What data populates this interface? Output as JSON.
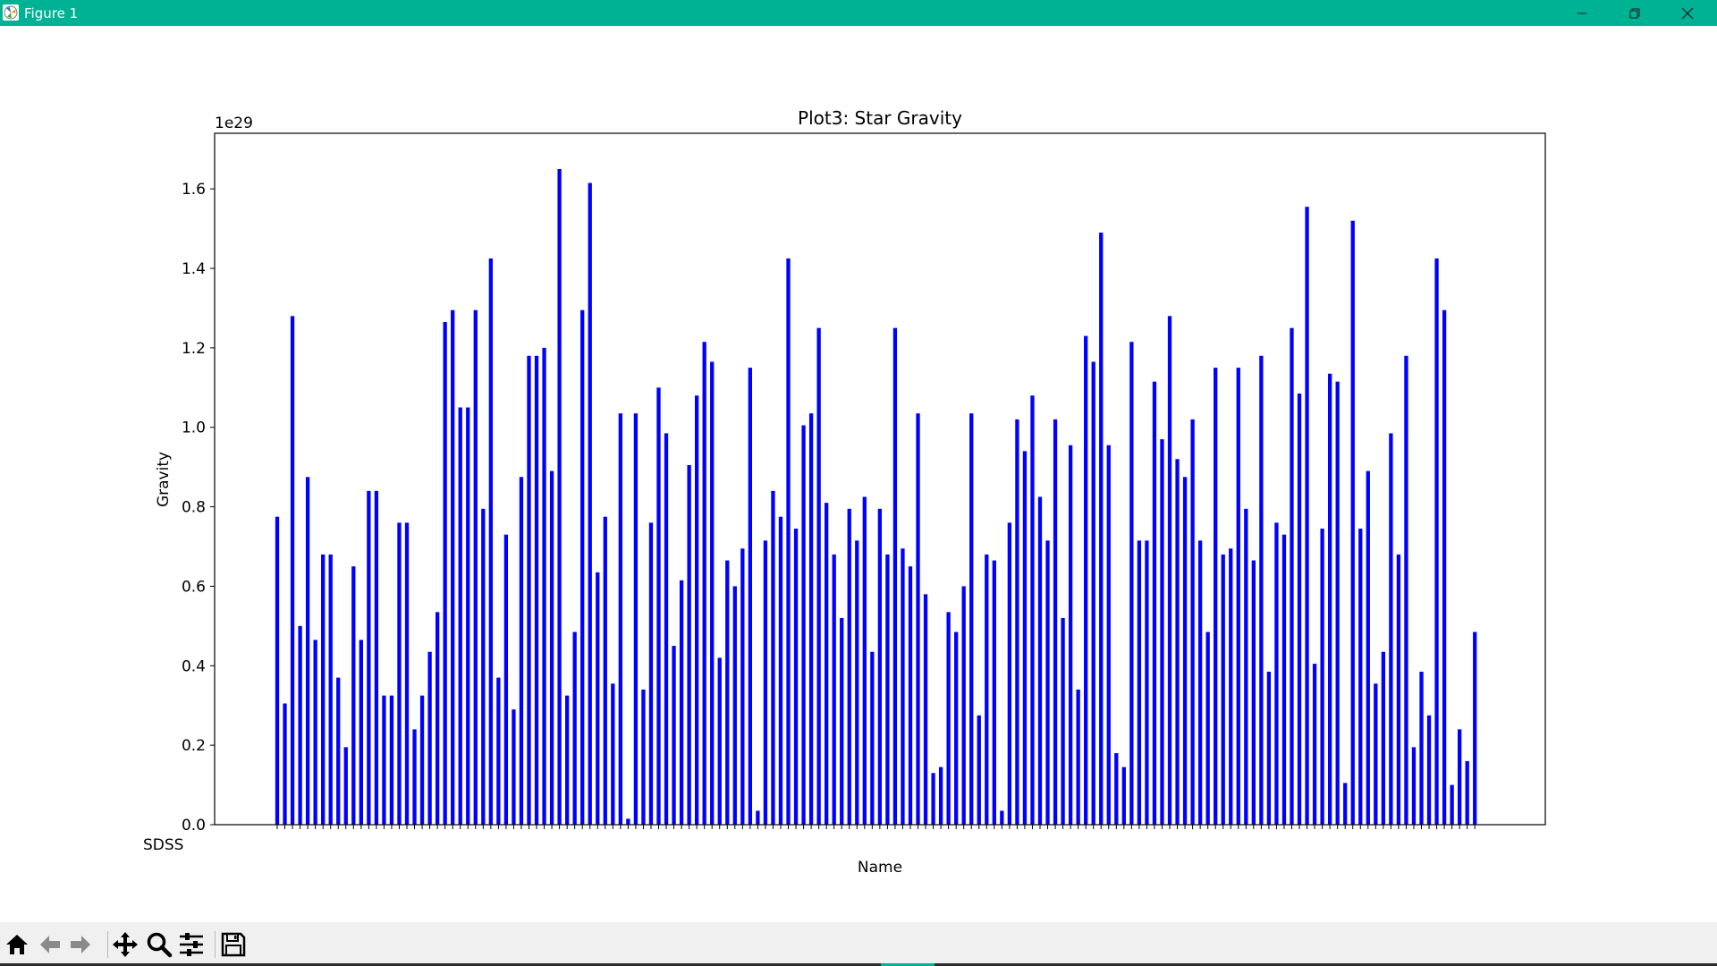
{
  "window": {
    "title": "Figure 1",
    "controls": [
      "minimize-icon",
      "restore-icon",
      "close-icon"
    ]
  },
  "toolbar": {
    "buttons": [
      {
        "name": "home-button",
        "icon": "home-icon"
      },
      {
        "name": "back-button",
        "icon": "arrow-left-icon"
      },
      {
        "name": "forward-button",
        "icon": "arrow-right-icon"
      },
      {
        "name": "pan-button",
        "icon": "move-icon"
      },
      {
        "name": "zoom-button",
        "icon": "magnifier-icon"
      },
      {
        "name": "configure-subplots-button",
        "icon": "sliders-icon"
      },
      {
        "name": "save-button",
        "icon": "floppy-disk-icon"
      }
    ]
  },
  "chart_data": {
    "type": "bar",
    "title": "Plot3: Star Gravity",
    "xlabel": "Name",
    "ylabel": "Gravity",
    "offset_text": "1e29",
    "first_category_label": "SDSS",
    "y_scale": 1e+29,
    "ylim": [
      0,
      1.74
    ],
    "yticks": [
      0.0,
      0.2,
      0.4,
      0.6,
      0.8,
      1.0,
      1.2,
      1.4,
      1.6
    ],
    "ytick_labels": [
      "0.0",
      "0.2",
      "0.4",
      "0.6",
      "0.8",
      "1.0",
      "1.2",
      "1.4",
      "1.6"
    ],
    "bar_color": "#0000ff",
    "grid": false,
    "legend": "none",
    "values": [
      0.775,
      0.305,
      1.28,
      0.5,
      0.875,
      0.465,
      0.68,
      0.68,
      0.37,
      0.195,
      0.65,
      0.465,
      0.84,
      0.84,
      0.325,
      0.325,
      0.76,
      0.76,
      0.24,
      0.325,
      0.435,
      0.535,
      1.265,
      1.295,
      1.05,
      1.05,
      1.295,
      0.795,
      1.425,
      0.37,
      0.73,
      0.29,
      0.875,
      1.18,
      1.18,
      1.2,
      0.89,
      1.65,
      0.325,
      0.485,
      1.295,
      1.615,
      0.635,
      0.775,
      0.355,
      1.035,
      0.015,
      1.035,
      0.34,
      0.76,
      1.1,
      0.985,
      0.45,
      0.615,
      0.905,
      1.08,
      1.215,
      1.165,
      0.42,
      0.665,
      0.6,
      0.695,
      1.15,
      0.035,
      0.715,
      0.84,
      0.775,
      1.425,
      0.745,
      1.005,
      1.035,
      1.25,
      0.81,
      0.68,
      0.52,
      0.795,
      0.715,
      0.825,
      0.435,
      0.795,
      0.68,
      1.25,
      0.695,
      0.65,
      1.035,
      0.58,
      0.13,
      0.145,
      0.535,
      0.485,
      0.6,
      1.035,
      0.275,
      0.68,
      0.665,
      0.035,
      0.76,
      1.02,
      0.94,
      1.08,
      0.825,
      0.715,
      1.02,
      0.52,
      0.955,
      0.34,
      1.23,
      1.165,
      1.49,
      0.955,
      0.18,
      0.145,
      1.215,
      0.715,
      0.715,
      1.115,
      0.97,
      1.28,
      0.92,
      0.875,
      1.02,
      0.715,
      0.485,
      1.15,
      0.68,
      0.695,
      1.15,
      0.795,
      0.665,
      1.18,
      0.385,
      0.76,
      0.73,
      1.25,
      1.085,
      1.555,
      0.405,
      0.745,
      1.135,
      1.115,
      0.105,
      1.52,
      0.745,
      0.89,
      0.355,
      0.435,
      0.985,
      0.68,
      1.18,
      0.195,
      0.385,
      0.275,
      1.425,
      1.295,
      0.1,
      0.24,
      0.16,
      0.485
    ]
  }
}
